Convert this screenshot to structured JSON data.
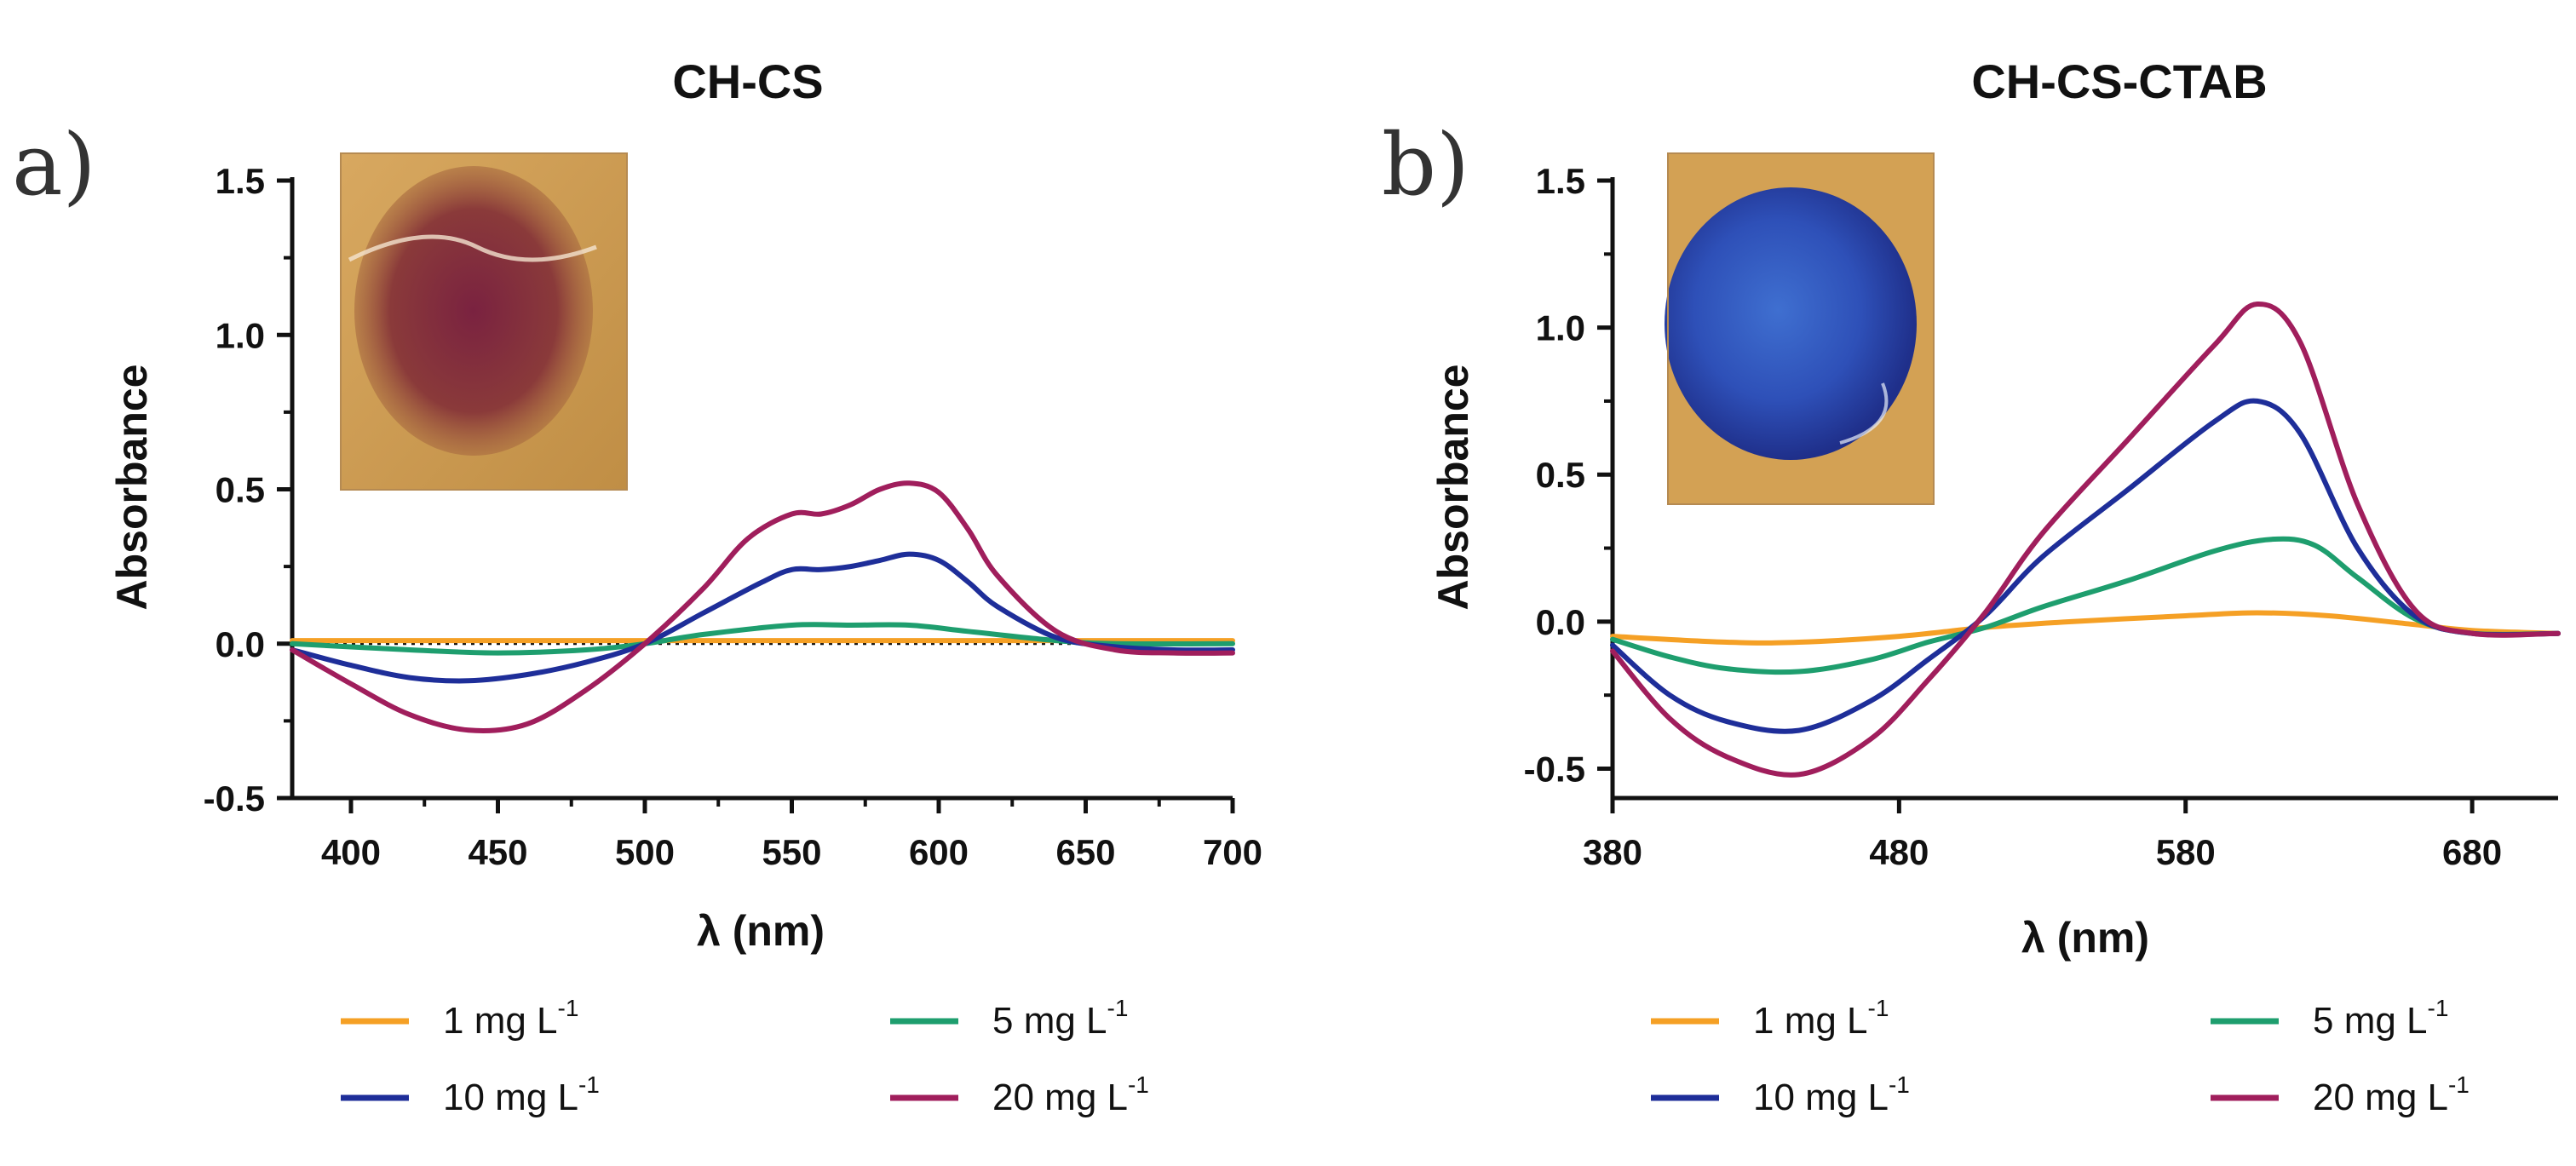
{
  "figure": {
    "panels": [
      {
        "letter": "a)",
        "title": "CH-CS",
        "inset_photo": "red-purple stained film photo"
      },
      {
        "letter": "b)",
        "title": "CH-CS-CTAB",
        "inset_photo": "blue stained film photo"
      }
    ]
  },
  "colors": {
    "c1": "#F5A025",
    "c5": "#1E9E6E",
    "c10": "#1E2E99",
    "c20": "#A01E5C"
  },
  "chart_data": [
    {
      "type": "line",
      "title": "CH-CS",
      "xlabel": "λ (nm)",
      "ylabel": "Absorbance",
      "xlim": [
        380,
        700
      ],
      "ylim": [
        -0.5,
        1.5
      ],
      "xticks": [
        400,
        450,
        500,
        550,
        600,
        650,
        700
      ],
      "yticks": [
        -0.5,
        0.0,
        0.5,
        1.0,
        1.5
      ],
      "ytick_labels": [
        "-0.5",
        "0.0",
        "0.5",
        "1.0",
        "1.5"
      ],
      "zero_line": "dotted",
      "legend": "bottom",
      "series": [
        {
          "name": "1 mg L",
          "sup": "-1",
          "color": "#F5A025",
          "x": [
            380,
            700
          ],
          "y": [
            0.01,
            0.01
          ]
        },
        {
          "name": "5 mg L",
          "sup": "-1",
          "color": "#1E9E6E",
          "x": [
            380,
            420,
            450,
            480,
            500,
            520,
            550,
            570,
            590,
            610,
            640,
            660,
            700
          ],
          "y": [
            0.0,
            -0.02,
            -0.03,
            -0.02,
            0.0,
            0.03,
            0.06,
            0.06,
            0.06,
            0.04,
            0.01,
            0.0,
            0.0
          ]
        },
        {
          "name": "10 mg L",
          "sup": "-1",
          "color": "#1E2E99",
          "x": [
            380,
            400,
            420,
            440,
            460,
            480,
            500,
            520,
            540,
            550,
            560,
            570,
            580,
            590,
            600,
            610,
            620,
            640,
            660,
            680,
            700
          ],
          "y": [
            -0.02,
            -0.07,
            -0.11,
            -0.12,
            -0.1,
            -0.06,
            0.0,
            0.1,
            0.2,
            0.24,
            0.24,
            0.25,
            0.27,
            0.29,
            0.27,
            0.2,
            0.12,
            0.02,
            -0.01,
            -0.02,
            -0.02
          ]
        },
        {
          "name": "20 mg L",
          "sup": "-1",
          "color": "#A01E5C",
          "x": [
            380,
            400,
            420,
            440,
            460,
            480,
            500,
            520,
            535,
            550,
            560,
            570,
            580,
            590,
            600,
            610,
            620,
            640,
            660,
            680,
            700
          ],
          "y": [
            -0.02,
            -0.13,
            -0.23,
            -0.28,
            -0.26,
            -0.15,
            0.0,
            0.18,
            0.34,
            0.42,
            0.42,
            0.45,
            0.5,
            0.52,
            0.49,
            0.37,
            0.22,
            0.04,
            -0.02,
            -0.03,
            -0.03
          ]
        }
      ],
      "legend_rows": [
        [
          "1 mg L",
          "5 mg L"
        ],
        [
          "10 mg L",
          "20 mg L"
        ]
      ]
    },
    {
      "type": "line",
      "title": "CH-CS-CTAB",
      "xlabel": "λ (nm)",
      "ylabel": "Absorbance",
      "xlim": [
        380,
        710
      ],
      "ylim": [
        -0.6,
        1.5
      ],
      "xticks": [
        380,
        480,
        580,
        680
      ],
      "yticks": [
        -0.5,
        0.0,
        0.5,
        1.0,
        1.5
      ],
      "ytick_labels": [
        "-0.5",
        "0.0",
        "0.5",
        "1.0",
        "1.5"
      ],
      "legend": "bottom",
      "series": [
        {
          "name": "1 mg L",
          "sup": "-1",
          "color": "#F5A025",
          "x": [
            380,
            420,
            445,
            480,
            510,
            540,
            580,
            605,
            630,
            660,
            680,
            710
          ],
          "y": [
            -0.05,
            -0.07,
            -0.07,
            -0.05,
            -0.02,
            0.0,
            0.02,
            0.03,
            0.02,
            -0.01,
            -0.03,
            -0.04
          ]
        },
        {
          "name": "5 mg L",
          "sup": "-1",
          "color": "#1E9E6E",
          "x": [
            380,
            400,
            420,
            445,
            470,
            490,
            510,
            530,
            560,
            590,
            610,
            625,
            640,
            660,
            680,
            710
          ],
          "y": [
            -0.06,
            -0.12,
            -0.16,
            -0.17,
            -0.13,
            -0.07,
            -0.02,
            0.05,
            0.14,
            0.24,
            0.28,
            0.26,
            0.15,
            0.01,
            -0.04,
            -0.04
          ]
        },
        {
          "name": "10 mg L",
          "sup": "-1",
          "color": "#1E2E99",
          "x": [
            380,
            400,
            420,
            445,
            470,
            490,
            510,
            530,
            560,
            590,
            605,
            620,
            640,
            660,
            680,
            710
          ],
          "y": [
            -0.08,
            -0.25,
            -0.34,
            -0.37,
            -0.27,
            -0.13,
            0.02,
            0.22,
            0.45,
            0.68,
            0.75,
            0.64,
            0.25,
            0.02,
            -0.04,
            -0.04
          ]
        },
        {
          "name": "20 mg L",
          "sup": "-1",
          "color": "#A01E5C",
          "x": [
            380,
            400,
            420,
            445,
            470,
            490,
            510,
            530,
            560,
            590,
            605,
            620,
            640,
            660,
            680,
            710
          ],
          "y": [
            -0.1,
            -0.33,
            -0.46,
            -0.52,
            -0.4,
            -0.2,
            0.03,
            0.3,
            0.62,
            0.94,
            1.08,
            0.95,
            0.4,
            0.04,
            -0.04,
            -0.04
          ]
        }
      ],
      "legend_rows": [
        [
          "1 mg L",
          "5 mg L"
        ],
        [
          "10 mg L",
          "20 mg L"
        ]
      ]
    }
  ]
}
